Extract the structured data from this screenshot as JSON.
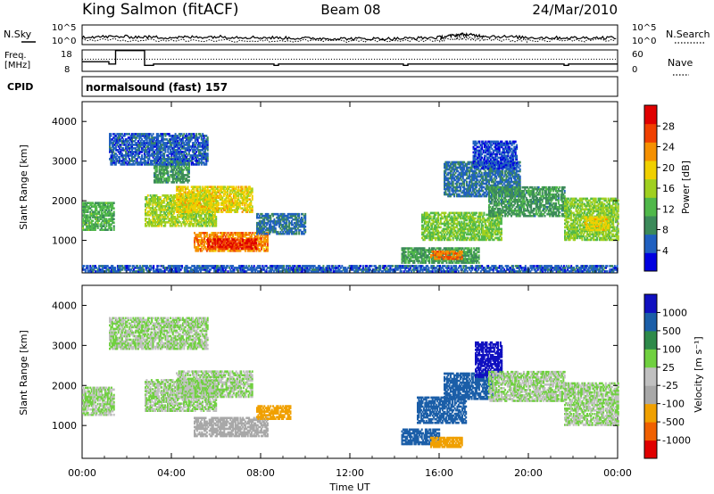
{
  "header": {
    "station": "King Salmon (fitACF)",
    "beam": "Beam 08",
    "date": "24/Mar/2010"
  },
  "nsky_panel": {
    "left_label": "N.Sky",
    "right_label": "N.Search",
    "left_ticks": [
      "10^5",
      "10^0"
    ],
    "right_ticks": [
      "10^5",
      "10^0"
    ]
  },
  "freq_panel": {
    "left_label_line1": "Freq.",
    "left_label_line2": "[MHz]",
    "left_ticks": [
      "18",
      "8"
    ],
    "right_label": "Nave",
    "right_ticks": [
      "60",
      "0"
    ]
  },
  "cpid_panel": {
    "label": "CPID",
    "program": "normalsound (fast) 157"
  },
  "power_panel": {
    "ylabel": "Slant Range [km]",
    "colorbar_label": "Power [dB]",
    "colorbar_ticks": [
      "28",
      "24",
      "20",
      "16",
      "12",
      "8",
      "4"
    ]
  },
  "velocity_panel": {
    "ylabel": "Slant Range [km]",
    "colorbar_label": "Velocity [m s⁻¹]",
    "colorbar_ticks": [
      "1000",
      "500",
      "100",
      "25",
      "-25",
      "-100",
      "-500",
      "-1000"
    ]
  },
  "xaxis": {
    "label": "Time UT",
    "ticks": [
      "00:00",
      "04:00",
      "08:00",
      "12:00",
      "16:00",
      "20:00",
      "00:00"
    ]
  },
  "colors": {
    "power": [
      "#0000e0",
      "#2060c0",
      "#3c8a5a",
      "#50b84a",
      "#a0d020",
      "#f0d000",
      "#f59000",
      "#f04000",
      "#e00000"
    ],
    "velocity": [
      "#e00000",
      "#f06000",
      "#f0a000",
      "#a8a8a8",
      "#c0c0c0",
      "#70d040",
      "#2e8a4a",
      "#1b5ea8",
      "#1010c0"
    ]
  },
  "chart_data": [
    {
      "type": "heatmap",
      "title": "Power",
      "x_unit": "hours UT",
      "y_unit": "km",
      "xlim": [
        0,
        24
      ],
      "ylim": [
        180,
        4500
      ],
      "zlim": [
        0,
        30
      ],
      "yticks": [
        1000,
        2000,
        3000,
        4000
      ],
      "regions": [
        {
          "t0": 0.0,
          "t1": 1.4,
          "r0": 1250,
          "r1": 1950,
          "p": 11
        },
        {
          "t0": 2.8,
          "t1": 6.0,
          "r0": 1350,
          "r1": 2150,
          "p": 15
        },
        {
          "t0": 4.2,
          "t1": 7.6,
          "r0": 1700,
          "r1": 2350,
          "p": 18
        },
        {
          "t0": 5.0,
          "t1": 8.3,
          "r0": 720,
          "r1": 1200,
          "p": 22
        },
        {
          "t0": 5.6,
          "t1": 7.8,
          "r0": 780,
          "r1": 1050,
          "p": 27
        },
        {
          "t0": 3.2,
          "t1": 4.8,
          "r0": 2450,
          "r1": 3050,
          "p": 9
        },
        {
          "t0": 1.2,
          "t1": 5.6,
          "r0": 2900,
          "r1": 3700,
          "p": 5
        },
        {
          "t0": 7.8,
          "t1": 10.0,
          "r0": 1150,
          "r1": 1650,
          "p": 6
        },
        {
          "t0": 14.3,
          "t1": 17.8,
          "r0": 420,
          "r1": 820,
          "p": 10
        },
        {
          "t0": 15.6,
          "t1": 17.0,
          "r0": 520,
          "r1": 720,
          "p": 23
        },
        {
          "t0": 15.2,
          "t1": 18.8,
          "r0": 1000,
          "r1": 1700,
          "p": 13
        },
        {
          "t0": 16.2,
          "t1": 19.6,
          "r0": 2100,
          "r1": 3000,
          "p": 6
        },
        {
          "t0": 18.2,
          "t1": 21.6,
          "r0": 1600,
          "r1": 2350,
          "p": 9
        },
        {
          "t0": 21.6,
          "t1": 24.0,
          "r0": 1000,
          "r1": 2050,
          "p": 14
        },
        {
          "t0": 22.5,
          "t1": 23.6,
          "r0": 1250,
          "r1": 1600,
          "p": 18
        },
        {
          "t0": 17.5,
          "t1": 19.5,
          "r0": 2800,
          "r1": 3500,
          "p": 4
        },
        {
          "t0": 0.0,
          "t1": 24.0,
          "r0": 200,
          "r1": 380,
          "p": 5
        }
      ]
    },
    {
      "type": "heatmap",
      "title": "Velocity",
      "x_unit": "hours UT",
      "y_unit": "km",
      "xlim": [
        0,
        24
      ],
      "ylim": [
        180,
        4500
      ],
      "zlim": [
        -1000,
        1000
      ],
      "yticks": [
        1000,
        2000,
        3000,
        4000
      ],
      "regions": [
        {
          "t0": 0.0,
          "t1": 1.4,
          "r0": 1250,
          "r1": 1950,
          "v": 0
        },
        {
          "t0": 2.8,
          "t1": 6.0,
          "r0": 1350,
          "r1": 2150,
          "v": 0
        },
        {
          "t0": 4.2,
          "t1": 7.6,
          "r0": 1700,
          "r1": 2350,
          "v": 0
        },
        {
          "t0": 5.0,
          "t1": 8.3,
          "r0": 720,
          "r1": 1200,
          "v": -60
        },
        {
          "t0": 7.8,
          "t1": 9.3,
          "r0": 1150,
          "r1": 1500,
          "v": -150
        },
        {
          "t0": 1.2,
          "t1": 5.6,
          "r0": 2900,
          "r1": 3700,
          "v": 0
        },
        {
          "t0": 14.3,
          "t1": 16.0,
          "r0": 520,
          "r1": 900,
          "v": 140
        },
        {
          "t0": 15.6,
          "t1": 17.0,
          "r0": 450,
          "r1": 700,
          "v": -200
        },
        {
          "t0": 15.0,
          "t1": 17.2,
          "r0": 1050,
          "r1": 1700,
          "v": 350
        },
        {
          "t0": 16.2,
          "t1": 18.4,
          "r0": 1650,
          "r1": 2300,
          "v": 150
        },
        {
          "t0": 17.6,
          "t1": 18.8,
          "r0": 2200,
          "r1": 3100,
          "v": 700
        },
        {
          "t0": 18.2,
          "t1": 21.6,
          "r0": 1600,
          "r1": 2350,
          "v": 0
        },
        {
          "t0": 21.6,
          "t1": 24.0,
          "r0": 1000,
          "r1": 2050,
          "v": 0
        }
      ]
    },
    {
      "type": "line",
      "title": "N.Sky / N.Search",
      "x_unit": "hours UT",
      "series": [
        {
          "name": "N.Sky",
          "x": [
            0,
            2,
            4,
            6,
            8,
            10,
            12,
            14,
            16,
            17,
            18,
            20,
            22,
            24
          ],
          "y": [
            2.0,
            2.0,
            1.8,
            2.0,
            1.8,
            1.6,
            1.5,
            1.5,
            1.8,
            2.6,
            2.2,
            1.8,
            1.7,
            1.8
          ]
        },
        {
          "name": "N.Search",
          "x": [
            0,
            4,
            8,
            12,
            16,
            17,
            18,
            20,
            24
          ],
          "y": [
            1.2,
            1.1,
            1.0,
            0.9,
            1.1,
            1.7,
            1.3,
            1.0,
            1.1
          ]
        }
      ]
    },
    {
      "type": "line",
      "title": "Freq. / Nave",
      "x_unit": "hours UT",
      "series": [
        {
          "name": "Freq.",
          "x": [
            0,
            1.2,
            1.2,
            1.5,
            1.5,
            2.8,
            2.8,
            3.2,
            3.2,
            8.6,
            8.6,
            8.8,
            8.8,
            14.4,
            14.4,
            14.6,
            14.6,
            21.6,
            21.6,
            21.8,
            21.8,
            24
          ],
          "y": [
            12.5,
            12.5,
            11.4,
            11.4,
            17.7,
            17.7,
            10.8,
            10.8,
            11.4,
            11.4,
            10.8,
            10.8,
            11.4,
            11.4,
            10.8,
            10.8,
            11.4,
            11.4,
            10.8,
            10.8,
            11.4,
            11.4
          ]
        },
        {
          "name": "Nave",
          "x": [
            0,
            24
          ],
          "y": [
            34,
            34
          ]
        }
      ]
    }
  ]
}
